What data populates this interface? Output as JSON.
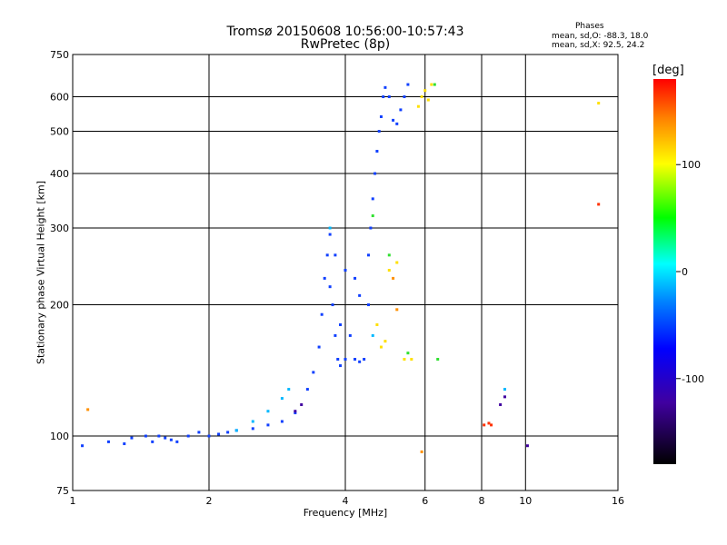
{
  "chart_data": {
    "type": "scatter",
    "title": "Tromsø 20150608 10:56:00-10:57:43",
    "subtitle": "RwPretec (8p)",
    "xlabel": "Frequency [MHz]",
    "ylabel": "Stationary phase Virtual Height [km]",
    "xscale": "log",
    "yscale": "log",
    "xlim": [
      1,
      16
    ],
    "ylim": [
      75,
      750
    ],
    "x_ticks": [
      "1",
      "2",
      "4",
      "6",
      "8",
      "10",
      "16"
    ],
    "y_ticks": [
      "75",
      "100",
      "200",
      "300",
      "400",
      "500",
      "600",
      "750"
    ],
    "grid": true,
    "phases": {
      "title": "Phases",
      "o_line": "mean, sd,O: -88.3, 18.0",
      "x_line": "mean, sd,X:  92.5, 24.2"
    },
    "colorbar": {
      "label": "[deg]",
      "ticks": [
        "100",
        "0",
        "-100"
      ],
      "colors": [
        "#ff0000",
        "#ff8000",
        "#ffff00",
        "#00ff00",
        "#00ffff",
        "#0080ff",
        "#0000ff",
        "#4000a0",
        "#000000"
      ]
    },
    "series": [
      {
        "color": "#1040ff",
        "points": [
          [
            1.05,
            95
          ],
          [
            1.2,
            97
          ],
          [
            1.3,
            96
          ],
          [
            1.35,
            99
          ],
          [
            1.45,
            100
          ],
          [
            1.5,
            97
          ],
          [
            1.55,
            100
          ],
          [
            1.6,
            99
          ],
          [
            1.65,
            98
          ],
          [
            1.7,
            97
          ],
          [
            1.8,
            100
          ],
          [
            1.9,
            102
          ],
          [
            2.0,
            100
          ],
          [
            2.1,
            101
          ],
          [
            2.2,
            102
          ],
          [
            2.3,
            103
          ],
          [
            2.5,
            104
          ],
          [
            2.7,
            106
          ],
          [
            2.9,
            108
          ],
          [
            3.1,
            113
          ],
          [
            3.3,
            128
          ],
          [
            3.4,
            140
          ],
          [
            3.5,
            160
          ],
          [
            3.55,
            190
          ],
          [
            3.6,
            230
          ],
          [
            3.65,
            260
          ],
          [
            3.7,
            290
          ],
          [
            3.75,
            200
          ],
          [
            3.8,
            170
          ],
          [
            3.85,
            150
          ],
          [
            3.9,
            145
          ],
          [
            4.0,
            150
          ],
          [
            4.1,
            170
          ],
          [
            4.2,
            150
          ],
          [
            4.3,
            148
          ],
          [
            4.4,
            150
          ],
          [
            4.5,
            200
          ],
          [
            4.5,
            260
          ],
          [
            4.55,
            300
          ],
          [
            4.6,
            350
          ],
          [
            4.65,
            400
          ],
          [
            4.7,
            450
          ],
          [
            4.75,
            500
          ],
          [
            4.8,
            540
          ],
          [
            4.85,
            600
          ],
          [
            4.9,
            630
          ],
          [
            5.0,
            600
          ],
          [
            5.1,
            530
          ],
          [
            5.2,
            520
          ],
          [
            5.3,
            560
          ],
          [
            5.4,
            600
          ],
          [
            5.5,
            640
          ],
          [
            4.0,
            240
          ],
          [
            3.7,
            220
          ],
          [
            3.9,
            180
          ],
          [
            4.2,
            230
          ],
          [
            4.3,
            210
          ],
          [
            3.8,
            260
          ]
        ]
      },
      {
        "color": "#00b8ff",
        "points": [
          [
            2.3,
            103
          ],
          [
            2.5,
            108
          ],
          [
            2.7,
            114
          ],
          [
            2.9,
            122
          ],
          [
            3.0,
            128
          ],
          [
            3.7,
            300
          ],
          [
            4.6,
            170
          ],
          [
            9.0,
            128
          ]
        ]
      },
      {
        "color": "#ffe000",
        "points": [
          [
            4.7,
            180
          ],
          [
            4.8,
            160
          ],
          [
            4.9,
            165
          ],
          [
            5.0,
            240
          ],
          [
            5.2,
            250
          ],
          [
            5.4,
            150
          ],
          [
            5.6,
            150
          ],
          [
            5.8,
            570
          ],
          [
            5.9,
            600
          ],
          [
            6.0,
            620
          ],
          [
            6.1,
            590
          ],
          [
            6.2,
            640
          ],
          [
            14.5,
            580
          ]
        ]
      },
      {
        "color": "#ff3000",
        "points": [
          [
            8.1,
            106
          ],
          [
            8.3,
            107
          ],
          [
            8.4,
            106
          ],
          [
            14.5,
            340
          ]
        ]
      },
      {
        "color": "#4000a0",
        "points": [
          [
            3.1,
            114
          ],
          [
            3.2,
            118
          ],
          [
            9.0,
            123
          ],
          [
            8.8,
            118
          ],
          [
            10.1,
            95
          ]
        ]
      },
      {
        "color": "#30e030",
        "points": [
          [
            4.6,
            320
          ],
          [
            5.0,
            260
          ],
          [
            5.5,
            155
          ],
          [
            6.3,
            640
          ],
          [
            6.4,
            150
          ]
        ]
      },
      {
        "color": "#ff9000",
        "points": [
          [
            5.1,
            230
          ],
          [
            5.2,
            195
          ],
          [
            5.9,
            92
          ],
          [
            1.08,
            115
          ]
        ]
      }
    ]
  }
}
